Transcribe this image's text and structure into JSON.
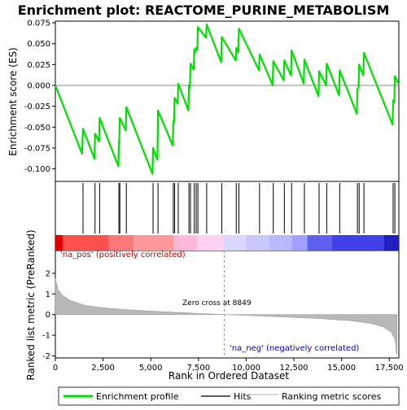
{
  "chart_data": {
    "type": "line",
    "title": "Enrichment plot: REACTOME_PURINE_METABOLISM",
    "xlabel": "Rank in Ordered Dataset",
    "ylabel_top": "Enrichment score (ES)",
    "ylabel_bottom": "Ranked list metric (PreRanked)",
    "xlim": [
      0,
      18000
    ],
    "ylim_top": [
      -0.115,
      0.077
    ],
    "ylim_bottom": [
      -2.1,
      3.1
    ],
    "x_ticks": [
      0,
      2500,
      5000,
      7500,
      10000,
      12500,
      15000,
      17500
    ],
    "x_tick_labels": [
      "0",
      "2,500",
      "5,000",
      "7,500",
      "10,000",
      "12,500",
      "15,000",
      "17,500"
    ],
    "y_ticks_top": [
      -0.1,
      -0.075,
      -0.05,
      -0.025,
      0.0,
      0.025,
      0.05,
      0.075
    ],
    "y_tick_labels_top": [
      "-0.100",
      "-0.075",
      "-0.050",
      "-0.025",
      "0.000",
      "0.025",
      "0.050",
      "0.075"
    ],
    "y_ticks_bottom": [
      -2,
      -1,
      0,
      1,
      2
    ],
    "y_tick_labels_bottom": [
      "-2",
      "-1",
      "0",
      "1",
      "2"
    ],
    "grid": false,
    "legend_placement": "bottom",
    "annotations": {
      "pos_label": "'na_pos' (positively correlated)",
      "neg_label": "'na_neg' (negatively correlated)",
      "zero_cross": "Zero cross at 8849",
      "zero_cross_x": 8849
    },
    "legend": [
      {
        "label": "Enrichment profile",
        "color": "#00e000"
      },
      {
        "label": "Hits",
        "color": "#000000"
      },
      {
        "label": "Ranking metric scores",
        "color": "#c0c0c0"
      }
    ],
    "colors": {
      "profile": "#00e000",
      "hits": "#000000",
      "metric": "#b8b8b8",
      "pos_label": "#cc0000",
      "neg_label": "#0000cc"
    },
    "hits": [
      1450,
      2080,
      2320,
      3330,
      3380,
      3720,
      5120,
      5380,
      6180,
      6250,
      6440,
      7000,
      7080,
      7280,
      7380,
      7470,
      7930,
      8720,
      9480,
      9620,
      10700,
      11420,
      12000,
      12380,
      13050,
      13820,
      14220,
      14900,
      15830,
      15920,
      16170,
      17700,
      17790
    ],
    "es_profile": [
      [
        0,
        0.0
      ],
      [
        1400,
        -0.082
      ],
      [
        1450,
        -0.052
      ],
      [
        2050,
        -0.088
      ],
      [
        2080,
        -0.058
      ],
      [
        2290,
        -0.067
      ],
      [
        2320,
        -0.039
      ],
      [
        3300,
        -0.097
      ],
      [
        3330,
        -0.067
      ],
      [
        3350,
        -0.069
      ],
      [
        3380,
        -0.039
      ],
      [
        3690,
        -0.054
      ],
      [
        3720,
        -0.026
      ],
      [
        5090,
        -0.106
      ],
      [
        5120,
        -0.075
      ],
      [
        5350,
        -0.089
      ],
      [
        5380,
        -0.03
      ],
      [
        6150,
        -0.072
      ],
      [
        6180,
        -0.043
      ],
      [
        6220,
        -0.044
      ],
      [
        6250,
        -0.015
      ],
      [
        6410,
        -0.022
      ],
      [
        6440,
        0.002
      ],
      [
        6970,
        -0.03
      ],
      [
        7000,
        0.0
      ],
      [
        7050,
        -0.003
      ],
      [
        7080,
        0.026
      ],
      [
        7250,
        0.019
      ],
      [
        7280,
        0.043
      ],
      [
        7350,
        0.04
      ],
      [
        7380,
        0.045
      ],
      [
        7440,
        0.043
      ],
      [
        7470,
        0.07
      ],
      [
        7900,
        0.057
      ],
      [
        7930,
        0.073
      ],
      [
        8690,
        0.028
      ],
      [
        8720,
        0.058
      ],
      [
        9450,
        0.03
      ],
      [
        9480,
        0.045
      ],
      [
        9590,
        0.04
      ],
      [
        9620,
        0.068
      ],
      [
        10670,
        0.018
      ],
      [
        10700,
        0.037
      ],
      [
        11390,
        0.0
      ],
      [
        11420,
        0.029
      ],
      [
        11970,
        0.006
      ],
      [
        12000,
        0.03
      ],
      [
        12350,
        0.012
      ],
      [
        12380,
        0.042
      ],
      [
        13020,
        0.002
      ],
      [
        13050,
        0.031
      ],
      [
        13790,
        -0.013
      ],
      [
        13820,
        0.017
      ],
      [
        14190,
        0.0
      ],
      [
        14220,
        0.026
      ],
      [
        14870,
        -0.012
      ],
      [
        14900,
        0.018
      ],
      [
        15800,
        -0.034
      ],
      [
        15830,
        -0.004
      ],
      [
        15890,
        -0.003
      ],
      [
        15920,
        0.025
      ],
      [
        16140,
        0.012
      ],
      [
        16170,
        0.039
      ],
      [
        17670,
        -0.047
      ],
      [
        17700,
        -0.018
      ],
      [
        17760,
        -0.02
      ],
      [
        17790,
        0.011
      ],
      [
        18000,
        0.001
      ]
    ],
    "metric_profile": [
      [
        0,
        1.75
      ],
      [
        150,
        1.2
      ],
      [
        400,
        0.9
      ],
      [
        800,
        0.68
      ],
      [
        1500,
        0.46
      ],
      [
        2500,
        0.33
      ],
      [
        3500,
        0.25
      ],
      [
        5000,
        0.17
      ],
      [
        7000,
        0.08
      ],
      [
        8849,
        0.0
      ],
      [
        10000,
        -0.04
      ],
      [
        12000,
        -0.12
      ],
      [
        14000,
        -0.2
      ],
      [
        15500,
        -0.3
      ],
      [
        16500,
        -0.42
      ],
      [
        17200,
        -0.6
      ],
      [
        17600,
        -0.85
      ],
      [
        17800,
        -1.2
      ],
      [
        17880,
        -1.9
      ],
      [
        17900,
        -1.9
      ]
    ],
    "color_bar_breaks": [
      0,
      400,
      2800,
      4100,
      6200,
      7400,
      8800,
      10000,
      11200,
      12400,
      13200,
      14500,
      17200,
      18000
    ],
    "color_bar_colors": [
      "#e00000",
      "#ff5050",
      "#ff7878",
      "#ff9898",
      "#ffb8d8",
      "#ffd0f0",
      "#d8d8ff",
      "#c8c8ff",
      "#b8b8ff",
      "#a0a0ff",
      "#6060f0",
      "#4040e8",
      "#2020c0"
    ]
  }
}
